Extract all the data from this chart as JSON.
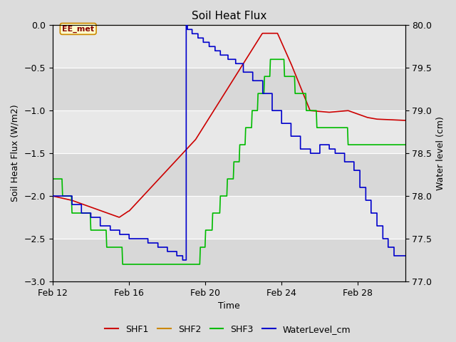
{
  "title": "Soil Heat Flux",
  "ylabel_left": "Soil Heat Flux (W/m2)",
  "ylabel_right": "Water level (cm)",
  "xlabel": "Time",
  "ylim_left": [
    -3.0,
    0.0
  ],
  "ylim_right": [
    77.0,
    80.0
  ],
  "yticks_left": [
    0.0,
    -0.5,
    -1.0,
    -1.5,
    -2.0,
    -2.5,
    -3.0
  ],
  "yticks_right": [
    77.0,
    77.5,
    78.0,
    78.5,
    79.0,
    79.5,
    80.0
  ],
  "xtick_positions": [
    0,
    4,
    8,
    12,
    16
  ],
  "xtick_labels": [
    "Feb 12",
    "Feb 16",
    "Feb 20",
    "Feb 24",
    "Feb 28"
  ],
  "xlim": [
    0,
    18.5
  ],
  "background_color": "#dcdcdc",
  "plot_bg_color": "#e8e8e8",
  "plot_bg_dark": "#d0d0d0",
  "shf1_color": "#cc0000",
  "shf2_color": "#cc8800",
  "shf3_color": "#00bb00",
  "water_color": "#0000cc",
  "ee_met_box_color": "#ffffcc",
  "ee_met_text_color": "#880000",
  "ee_met_border_color": "#cc8800",
  "grid_color": "#ffffff",
  "title_fontsize": 11,
  "label_fontsize": 9,
  "tick_fontsize": 9,
  "legend_fontsize": 9
}
